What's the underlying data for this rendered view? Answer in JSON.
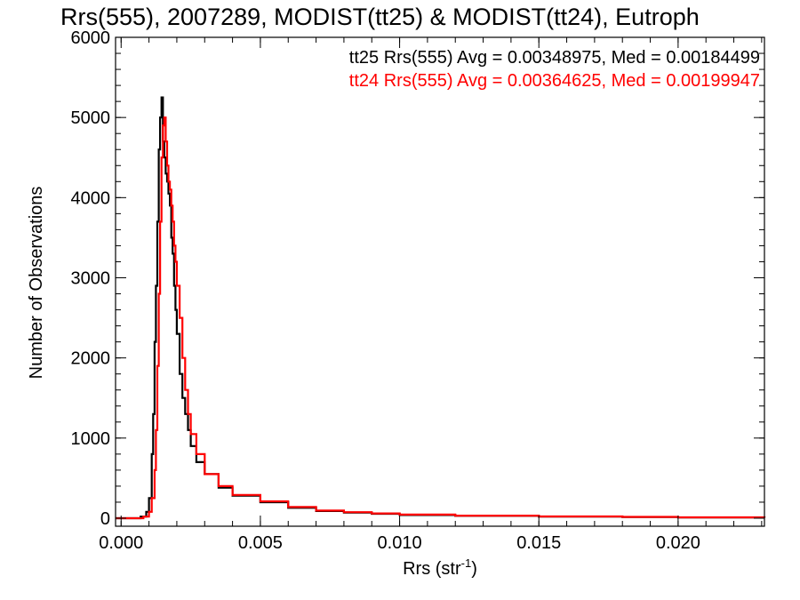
{
  "chart_data": {
    "type": "histogram",
    "title": "Rrs(555), 2007289, MODIST(tt25) & MODIST(tt24), Eutroph",
    "xlabel": "Rrs (str",
    "xlabel_sup": "-1",
    "xlabel_close": ")",
    "ylabel": "Number of Observations",
    "xlim": [
      -0.0002,
      0.0231
    ],
    "ylim": [
      -100,
      6000
    ],
    "x_ticks": [
      0.0,
      0.005,
      0.01,
      0.015,
      0.02
    ],
    "x_tick_labels": [
      "0.000",
      "0.005",
      "0.010",
      "0.015",
      "0.020"
    ],
    "y_ticks": [
      0,
      1000,
      2000,
      3000,
      4000,
      5000,
      6000
    ],
    "y_tick_labels": [
      "0",
      "1000",
      "2000",
      "3000",
      "4000",
      "5000",
      "6000"
    ],
    "grid": false,
    "annotations": [
      "tt25 Rrs(555) Avg = 0.00348975, Med = 0.00184499",
      "tt24 Rrs(555) Avg = 0.00364625, Med = 0.00199947"
    ],
    "series": [
      {
        "name": "tt25",
        "color": "#000000",
        "points": [
          [
            -0.0002,
            0
          ],
          [
            0.0004,
            0
          ],
          [
            0.0007,
            20
          ],
          [
            0.0009,
            80
          ],
          [
            0.001,
            250
          ],
          [
            0.0011,
            800
          ],
          [
            0.00115,
            1300
          ],
          [
            0.0012,
            2200
          ],
          [
            0.00125,
            2900
          ],
          [
            0.0013,
            3700
          ],
          [
            0.00135,
            4600
          ],
          [
            0.0014,
            5000
          ],
          [
            0.00145,
            5250
          ],
          [
            0.0015,
            4700
          ],
          [
            0.00155,
            4500
          ],
          [
            0.0016,
            4300
          ],
          [
            0.00165,
            4200
          ],
          [
            0.0017,
            4050
          ],
          [
            0.00175,
            3900
          ],
          [
            0.0018,
            3500
          ],
          [
            0.00185,
            3300
          ],
          [
            0.0019,
            2900
          ],
          [
            0.00195,
            2600
          ],
          [
            0.002,
            2300
          ],
          [
            0.0021,
            1800
          ],
          [
            0.0022,
            1500
          ],
          [
            0.0023,
            1300
          ],
          [
            0.0024,
            1100
          ],
          [
            0.0025,
            900
          ],
          [
            0.0027,
            700
          ],
          [
            0.003,
            550
          ],
          [
            0.0035,
            380
          ],
          [
            0.004,
            280
          ],
          [
            0.005,
            200
          ],
          [
            0.006,
            130
          ],
          [
            0.007,
            90
          ],
          [
            0.008,
            70
          ],
          [
            0.009,
            55
          ],
          [
            0.01,
            40
          ],
          [
            0.012,
            30
          ],
          [
            0.015,
            20
          ],
          [
            0.018,
            15
          ],
          [
            0.02,
            10
          ],
          [
            0.0231,
            5
          ]
        ]
      },
      {
        "name": "tt24",
        "color": "#ff0000",
        "points": [
          [
            -0.0002,
            0
          ],
          [
            0.0004,
            0
          ],
          [
            0.0008,
            20
          ],
          [
            0.001,
            80
          ],
          [
            0.0011,
            250
          ],
          [
            0.0012,
            600
          ],
          [
            0.00125,
            1100
          ],
          [
            0.0013,
            1900
          ],
          [
            0.00135,
            2800
          ],
          [
            0.0014,
            3700
          ],
          [
            0.00145,
            4500
          ],
          [
            0.0015,
            4900
          ],
          [
            0.00155,
            5000
          ],
          [
            0.0016,
            4700
          ],
          [
            0.00165,
            4400
          ],
          [
            0.0017,
            4200
          ],
          [
            0.00175,
            4100
          ],
          [
            0.0018,
            3900
          ],
          [
            0.00185,
            3700
          ],
          [
            0.0019,
            3400
          ],
          [
            0.00195,
            3200
          ],
          [
            0.002,
            2900
          ],
          [
            0.0021,
            2500
          ],
          [
            0.0022,
            2000
          ],
          [
            0.0023,
            1600
          ],
          [
            0.0024,
            1300
          ],
          [
            0.0025,
            1050
          ],
          [
            0.0027,
            800
          ],
          [
            0.003,
            550
          ],
          [
            0.0035,
            400
          ],
          [
            0.004,
            290
          ],
          [
            0.005,
            210
          ],
          [
            0.006,
            140
          ],
          [
            0.007,
            95
          ],
          [
            0.008,
            75
          ],
          [
            0.009,
            60
          ],
          [
            0.01,
            45
          ],
          [
            0.012,
            32
          ],
          [
            0.015,
            22
          ],
          [
            0.018,
            16
          ],
          [
            0.02,
            11
          ],
          [
            0.0231,
            6
          ]
        ]
      }
    ]
  }
}
